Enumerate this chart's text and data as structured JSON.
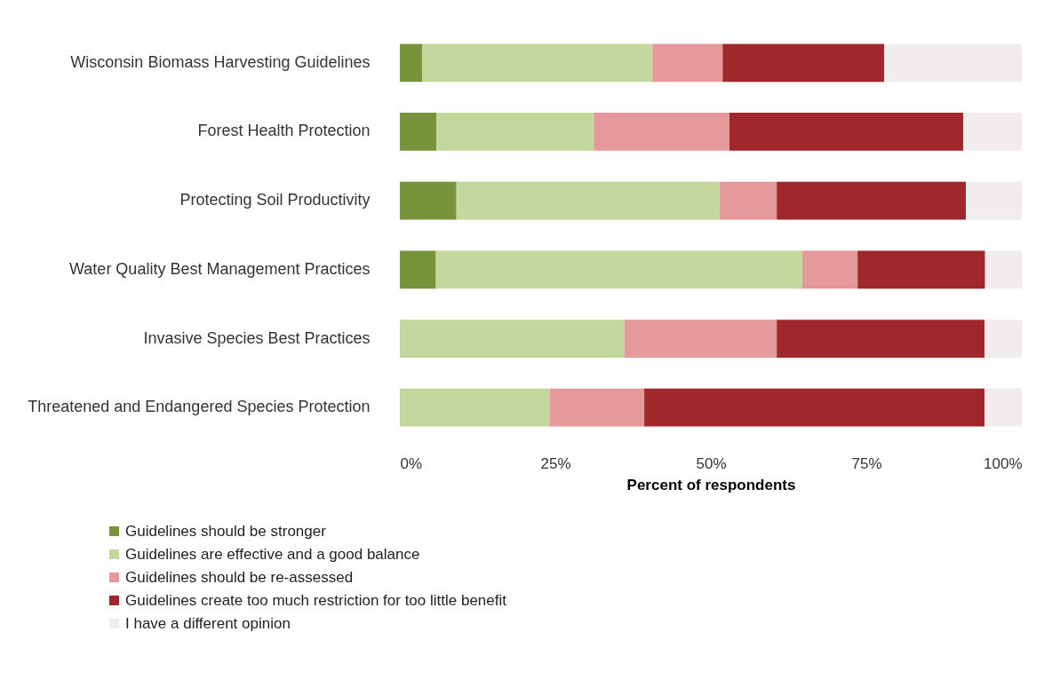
{
  "chart_data": {
    "type": "bar",
    "orientation": "horizontal",
    "stacked": true,
    "categories": [
      "Wisconsin Biomass Harvesting Guidelines",
      "Forest Health Protection",
      "Protecting Soil Productivity",
      "Water Quality Best Management Practices",
      "Invasive Species Best Practices",
      "Threatened and Endangered Species Protection"
    ],
    "series": [
      {
        "name": "Guidelines should be stronger",
        "color": "#77933c",
        "values": [
          3.6,
          5.9,
          9.1,
          5.8,
          0,
          0
        ]
      },
      {
        "name": "Guidelines are effective and  a good balance",
        "color": "#c3d69b",
        "values": [
          37.0,
          25.3,
          42.3,
          58.9,
          36.1,
          24.1
        ]
      },
      {
        "name": "Guidelines should be re-assessed",
        "color": "#e6999a",
        "values": [
          11.3,
          21.8,
          9.2,
          8.9,
          24.5,
          15.2
        ]
      },
      {
        "name": "Guidelines create too much restriction for too little benefit",
        "color": "#a0282c",
        "values": [
          26.0,
          37.6,
          30.4,
          20.5,
          33.4,
          54.7
        ]
      },
      {
        "name": "I have a different opinion",
        "color": "#f1eded",
        "values": [
          22.1,
          9.4,
          9.0,
          5.9,
          6.0,
          6.0
        ]
      }
    ],
    "xlabel": "Percent of respondents",
    "xlim": [
      0,
      100
    ],
    "xticks": [
      {
        "value": 0,
        "label": "0%"
      },
      {
        "value": 25,
        "label": "25%"
      },
      {
        "value": 50,
        "label": "50%"
      },
      {
        "value": 75,
        "label": "75%"
      },
      {
        "value": 100,
        "label": "100%"
      }
    ],
    "grid": false,
    "legend": "bottom left"
  }
}
